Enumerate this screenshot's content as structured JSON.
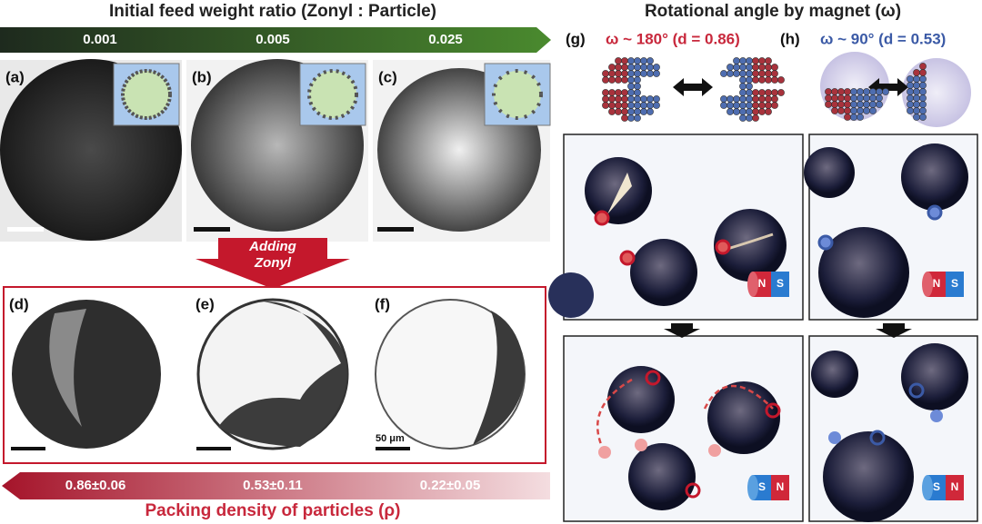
{
  "figure": {
    "top_title": "Initial feed weight ratio (Zonyl : Particle)",
    "ratios": [
      "0.001",
      "0.005",
      "0.025"
    ],
    "panel_labels": [
      "(a)",
      "(b)",
      "(c)",
      "(d)",
      "(e)",
      "(f)",
      "(g)",
      "(h)"
    ],
    "adding_zonyl": [
      "Adding",
      "Zonyl"
    ],
    "densities": [
      "0.86±0.06",
      "0.53±0.11",
      "0.22±0.05"
    ],
    "bottom_title": "Packing density of particles (ρ)",
    "scale_bar": "50 μm",
    "right_title": "Rotational angle by magnet (ω)",
    "conditions": [
      "ω ~ 180° (d = 0.86)",
      "ω ~ 90° (d = 0.53)"
    ],
    "magnets": [
      [
        "N",
        "S"
      ],
      [
        "N",
        "S"
      ],
      [
        "S",
        "N"
      ],
      [
        "S",
        "N"
      ]
    ]
  }
}
